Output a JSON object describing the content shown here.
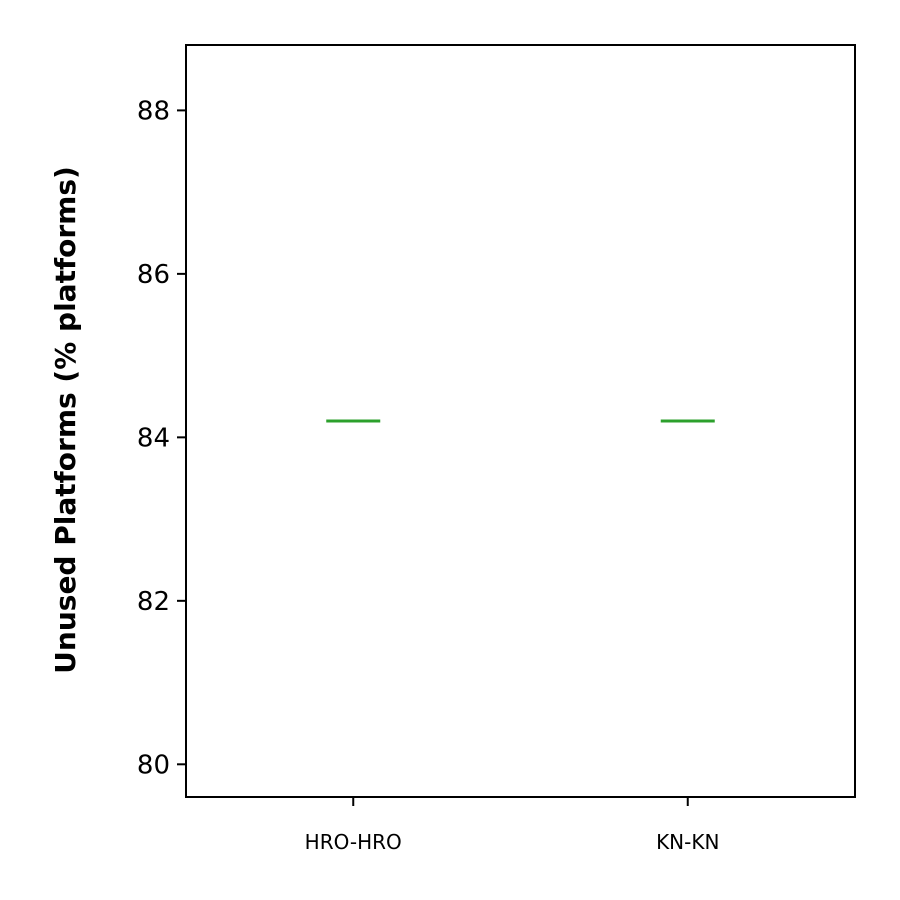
{
  "chart_data": {
    "type": "box",
    "title": "",
    "xlabel": "",
    "ylabel": "Unused Platforms (% platforms)",
    "categories": [
      "HRO-HRO",
      "KN-KN"
    ],
    "medians": [
      84.2,
      84.2
    ],
    "ylim": [
      79.6,
      88.8
    ],
    "yticks": [
      80,
      82,
      84,
      86,
      88
    ],
    "grid": false,
    "legend": "none",
    "colors": {
      "median": "#2ca02c",
      "axis": "#000000",
      "background": "#ffffff"
    }
  }
}
